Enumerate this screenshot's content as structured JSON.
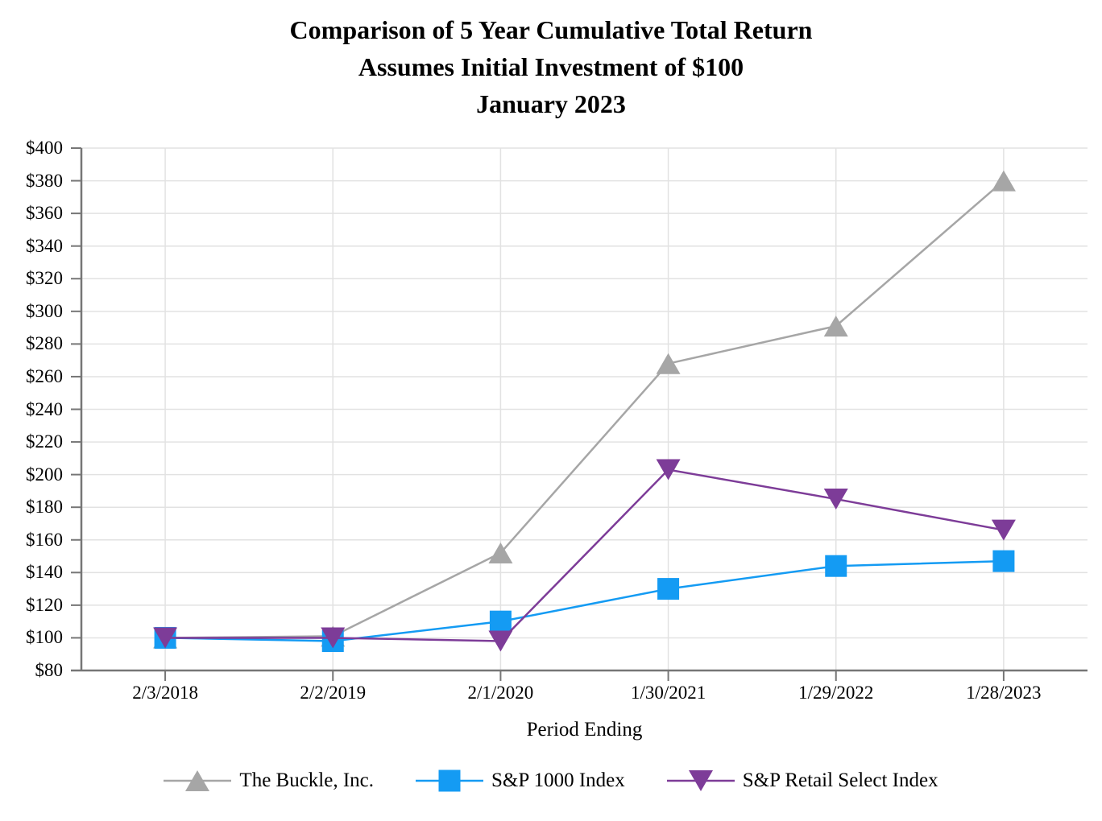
{
  "title": {
    "line1": "Comparison of 5 Year Cumulative Total Return",
    "line2": "Assumes Initial Investment of $100",
    "line3": "January 2023"
  },
  "chart_data": {
    "type": "line",
    "categories": [
      "2/3/2018",
      "2/2/2019",
      "2/1/2020",
      "1/30/2021",
      "1/29/2022",
      "1/28/2023"
    ],
    "series": [
      {
        "name": "The Buckle, Inc.",
        "marker": "triangle-up",
        "color": "#A6A6A6",
        "values": [
          100,
          101,
          152,
          268,
          291,
          380
        ]
      },
      {
        "name": "S&P 1000 Index",
        "marker": "square",
        "color": "#149BF3",
        "values": [
          100,
          98,
          110,
          130,
          144,
          147
        ]
      },
      {
        "name": "S&P Retail Select Index",
        "marker": "triangle-down",
        "color": "#7D3C98",
        "values": [
          100,
          100,
          98,
          203,
          185,
          166
        ]
      }
    ],
    "title": "Comparison of 5 Year Cumulative Total Return Assumes Initial Investment of $100 January 2023",
    "xlabel": "Period Ending",
    "ylabel": "",
    "ylim": [
      80,
      400
    ],
    "ytick_step": 20,
    "ytick_prefix": "$",
    "grid": true,
    "legend_position": "bottom"
  },
  "colors": {
    "background": "#FFFFFF",
    "text": "#000000",
    "axis": "#767676",
    "gridline": "#E2E2E2"
  }
}
